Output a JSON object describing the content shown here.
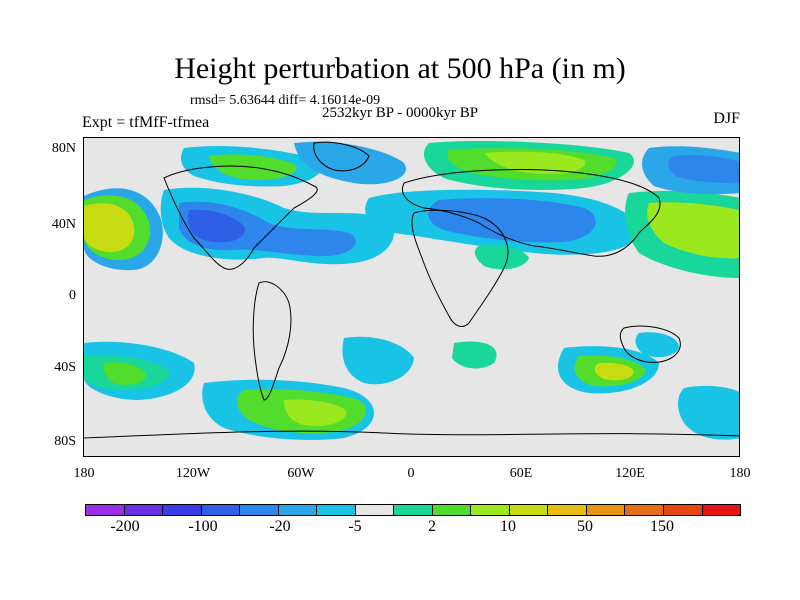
{
  "title": "Height perturbation at 500 hPa (in m)",
  "stats": "rmsd= 5.63644 diff= 4.16014e-09",
  "period": "2532kyr BP - 0000kyr BP",
  "expt": "Expt = tfMfF-tfmea",
  "season": "DJF",
  "y_ticks": [
    "80N",
    "40N",
    "0",
    "40S",
    "80S"
  ],
  "x_ticks": [
    "180",
    "120W",
    "60W",
    "0",
    "60E",
    "120E",
    "180"
  ],
  "colorbar": {
    "colors": [
      "#9b30e6",
      "#6a30e6",
      "#3c3ce6",
      "#2f5fe6",
      "#2c86ec",
      "#2aa7e8",
      "#19c3e6",
      "#e6e6e6",
      "#19d69a",
      "#52dc2c",
      "#9be81e",
      "#c8dc14",
      "#e6be14",
      "#e69614",
      "#e66e14",
      "#e64614",
      "#e61414"
    ],
    "labels": [
      "-200",
      "-100",
      "-20",
      "-5",
      "2",
      "10",
      "50",
      "150"
    ]
  },
  "map_colors": {
    "background": "#e6e6e6",
    "cyan": "#19c3e6",
    "light_blue": "#2aa7e8",
    "blue": "#2c86ec",
    "dark_blue": "#2f5fe6",
    "green_cyan": "#19d69a",
    "green": "#52dc2c",
    "yellow_green": "#9be81e",
    "yellow": "#c8dc14",
    "orange_yellow": "#e6be14"
  }
}
